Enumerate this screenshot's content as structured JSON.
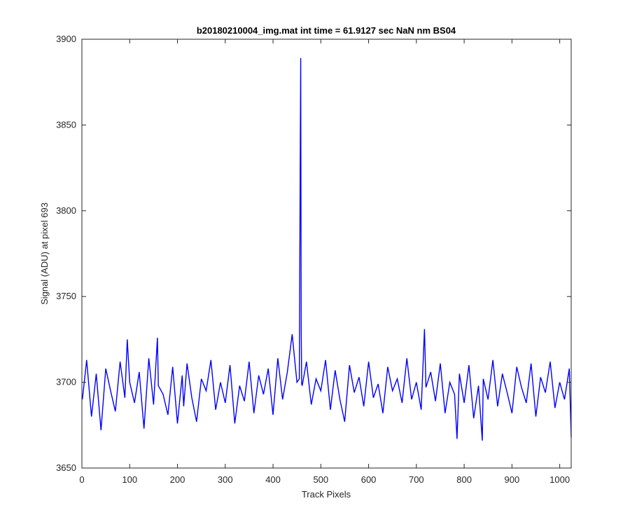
{
  "chart_data": {
    "type": "line",
    "title": "b20180210004_img.mat int time = 61.9127 sec  NaN nm BS04",
    "xlabel": "Track Pixels",
    "ylabel": "Signal (ADU) at pixel 693",
    "xlim": [
      0,
      1024
    ],
    "ylim": [
      3650,
      3900
    ],
    "xticks": [
      0,
      100,
      200,
      300,
      400,
      500,
      600,
      700,
      800,
      900,
      1000
    ],
    "yticks": [
      3650,
      3700,
      3750,
      3800,
      3850,
      3900
    ],
    "grid": false,
    "legend": "none",
    "series": [
      {
        "color": "#0000ff",
        "x": [
          1,
          10,
          20,
          30,
          40,
          50,
          60,
          70,
          80,
          90,
          95,
          100,
          110,
          120,
          130,
          140,
          150,
          158,
          160,
          170,
          180,
          190,
          200,
          210,
          213,
          220,
          230,
          240,
          250,
          260,
          270,
          280,
          290,
          300,
          310,
          320,
          330,
          340,
          350,
          360,
          370,
          380,
          390,
          400,
          410,
          420,
          430,
          440,
          450,
          455,
          457,
          458,
          459,
          460,
          461,
          470,
          480,
          490,
          500,
          510,
          520,
          530,
          540,
          550,
          560,
          570,
          580,
          590,
          600,
          610,
          620,
          630,
          640,
          650,
          660,
          670,
          680,
          690,
          700,
          710,
          717,
          720,
          730,
          740,
          750,
          760,
          770,
          780,
          785,
          790,
          800,
          810,
          820,
          830,
          838,
          840,
          850,
          860,
          870,
          880,
          890,
          900,
          910,
          920,
          930,
          940,
          950,
          960,
          970,
          980,
          990,
          1000,
          1010,
          1020,
          1024
        ],
        "y": [
          3690,
          3713,
          3680,
          3705,
          3672,
          3708,
          3695,
          3683,
          3712,
          3691,
          3725,
          3700,
          3688,
          3706,
          3673,
          3714,
          3687,
          3726,
          3698,
          3693,
          3681,
          3709,
          3676,
          3704,
          3686,
          3711,
          3691,
          3677,
          3702,
          3695,
          3713,
          3684,
          3700,
          3688,
          3710,
          3676,
          3698,
          3689,
          3712,
          3682,
          3704,
          3693,
          3708,
          3681,
          3714,
          3690,
          3706,
          3728,
          3700,
          3702,
          3840,
          3889,
          3730,
          3699,
          3698,
          3712,
          3687,
          3702,
          3695,
          3713,
          3684,
          3707,
          3690,
          3677,
          3710,
          3694,
          3703,
          3686,
          3712,
          3691,
          3699,
          3682,
          3709,
          3695,
          3702,
          3688,
          3714,
          3690,
          3700,
          3684,
          3731,
          3697,
          3706,
          3689,
          3711,
          3682,
          3700,
          3693,
          3667,
          3705,
          3688,
          3710,
          3679,
          3698,
          3666,
          3702,
          3690,
          3713,
          3686,
          3705,
          3694,
          3682,
          3709,
          3697,
          3688,
          3711,
          3680,
          3703,
          3694,
          3712,
          3685,
          3700,
          3690,
          3708,
          3668
        ]
      }
    ]
  }
}
